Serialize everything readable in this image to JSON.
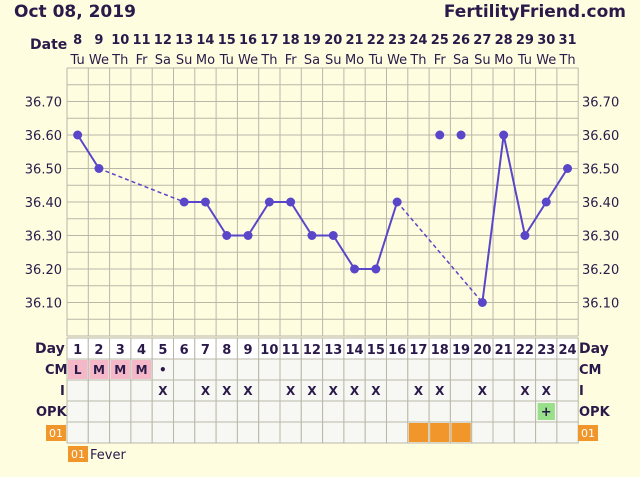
{
  "header": {
    "date": "Oct 08, 2019",
    "brand": "FertilityFriend.com"
  },
  "labels": {
    "date": "Date",
    "day": "Day",
    "cm": "CM",
    "i": "I",
    "opk": "OPK",
    "fever_code": "01",
    "fever_legend": "Fever"
  },
  "colors": {
    "background": "#fffde0",
    "grid": "#b8b8a8",
    "line": "#5a46c8",
    "header_text": "#2a1a4a",
    "label_text": "#2a1a4a",
    "cm_fill": "#f4b8c8",
    "fever": "#f0962a",
    "opk_positive": "#9adf8a",
    "day_row": "#ffffff",
    "data_row": "#f7f7f4"
  },
  "chart_data": {
    "type": "line",
    "dates": [
      "8",
      "9",
      "10",
      "11",
      "12",
      "13",
      "14",
      "15",
      "16",
      "17",
      "18",
      "19",
      "20",
      "21",
      "22",
      "23",
      "24",
      "25",
      "26",
      "27",
      "28",
      "29",
      "30",
      "31"
    ],
    "weekdays": [
      "Tu",
      "We",
      "Th",
      "Fr",
      "Sa",
      "Su",
      "Mo",
      "Tu",
      "We",
      "Th",
      "Fr",
      "Sa",
      "Su",
      "Mo",
      "Tu",
      "We",
      "Th",
      "Fr",
      "Sa",
      "Su",
      "Mo",
      "Tu",
      "We",
      "Th"
    ],
    "days": [
      "1",
      "2",
      "3",
      "4",
      "5",
      "6",
      "7",
      "8",
      "9",
      "10",
      "11",
      "12",
      "13",
      "14",
      "15",
      "16",
      "17",
      "18",
      "19",
      "20",
      "21",
      "22",
      "23",
      "24"
    ],
    "temperatures": [
      36.6,
      36.5,
      null,
      null,
      null,
      36.4,
      36.4,
      36.3,
      36.3,
      36.4,
      36.4,
      36.3,
      36.3,
      36.2,
      36.2,
      36.4,
      null,
      36.6,
      36.6,
      36.1,
      36.6,
      36.3,
      36.4,
      36.5
    ],
    "solid_segments": [
      [
        1,
        2
      ],
      [
        6,
        7
      ],
      [
        7,
        8
      ],
      [
        8,
        9
      ],
      [
        9,
        10
      ],
      [
        10,
        11
      ],
      [
        11,
        12
      ],
      [
        12,
        13
      ],
      [
        13,
        14
      ],
      [
        14,
        15
      ],
      [
        15,
        16
      ],
      [
        20,
        21
      ],
      [
        21,
        22
      ],
      [
        22,
        23
      ],
      [
        23,
        24
      ]
    ],
    "dashed_segments": [
      [
        2,
        6
      ],
      [
        16,
        20
      ]
    ],
    "y_ticks": [
      36.1,
      36.2,
      36.3,
      36.4,
      36.5,
      36.6,
      36.7
    ],
    "y_tick_labels": [
      "36.10",
      "36.20",
      "36.30",
      "36.40",
      "36.50",
      "36.60",
      "36.70"
    ],
    "ylim": [
      36.0,
      36.8
    ],
    "cm": [
      "L",
      "M",
      "M",
      "M",
      "•",
      "",
      "",
      "",
      "",
      "",
      "",
      "",
      "",
      "",
      "",
      "",
      "",
      "",
      "",
      "",
      "",
      "",
      "",
      ""
    ],
    "intercourse": [
      "",
      "",
      "",
      "",
      "X",
      "",
      "X",
      "X",
      "X",
      "",
      "X",
      "X",
      "X",
      "X",
      "X",
      "",
      "X",
      "X",
      "",
      "X",
      "",
      "X",
      "X",
      ""
    ],
    "opk": [
      "",
      "",
      "",
      "",
      "",
      "",
      "",
      "",
      "",
      "",
      "",
      "",
      "",
      "",
      "",
      "",
      "",
      "",
      "",
      "",
      "",
      "",
      "+",
      ""
    ],
    "fever": [
      false,
      false,
      false,
      false,
      false,
      false,
      false,
      false,
      false,
      false,
      false,
      false,
      false,
      false,
      false,
      false,
      true,
      true,
      true,
      false,
      false,
      false,
      false,
      false
    ]
  }
}
